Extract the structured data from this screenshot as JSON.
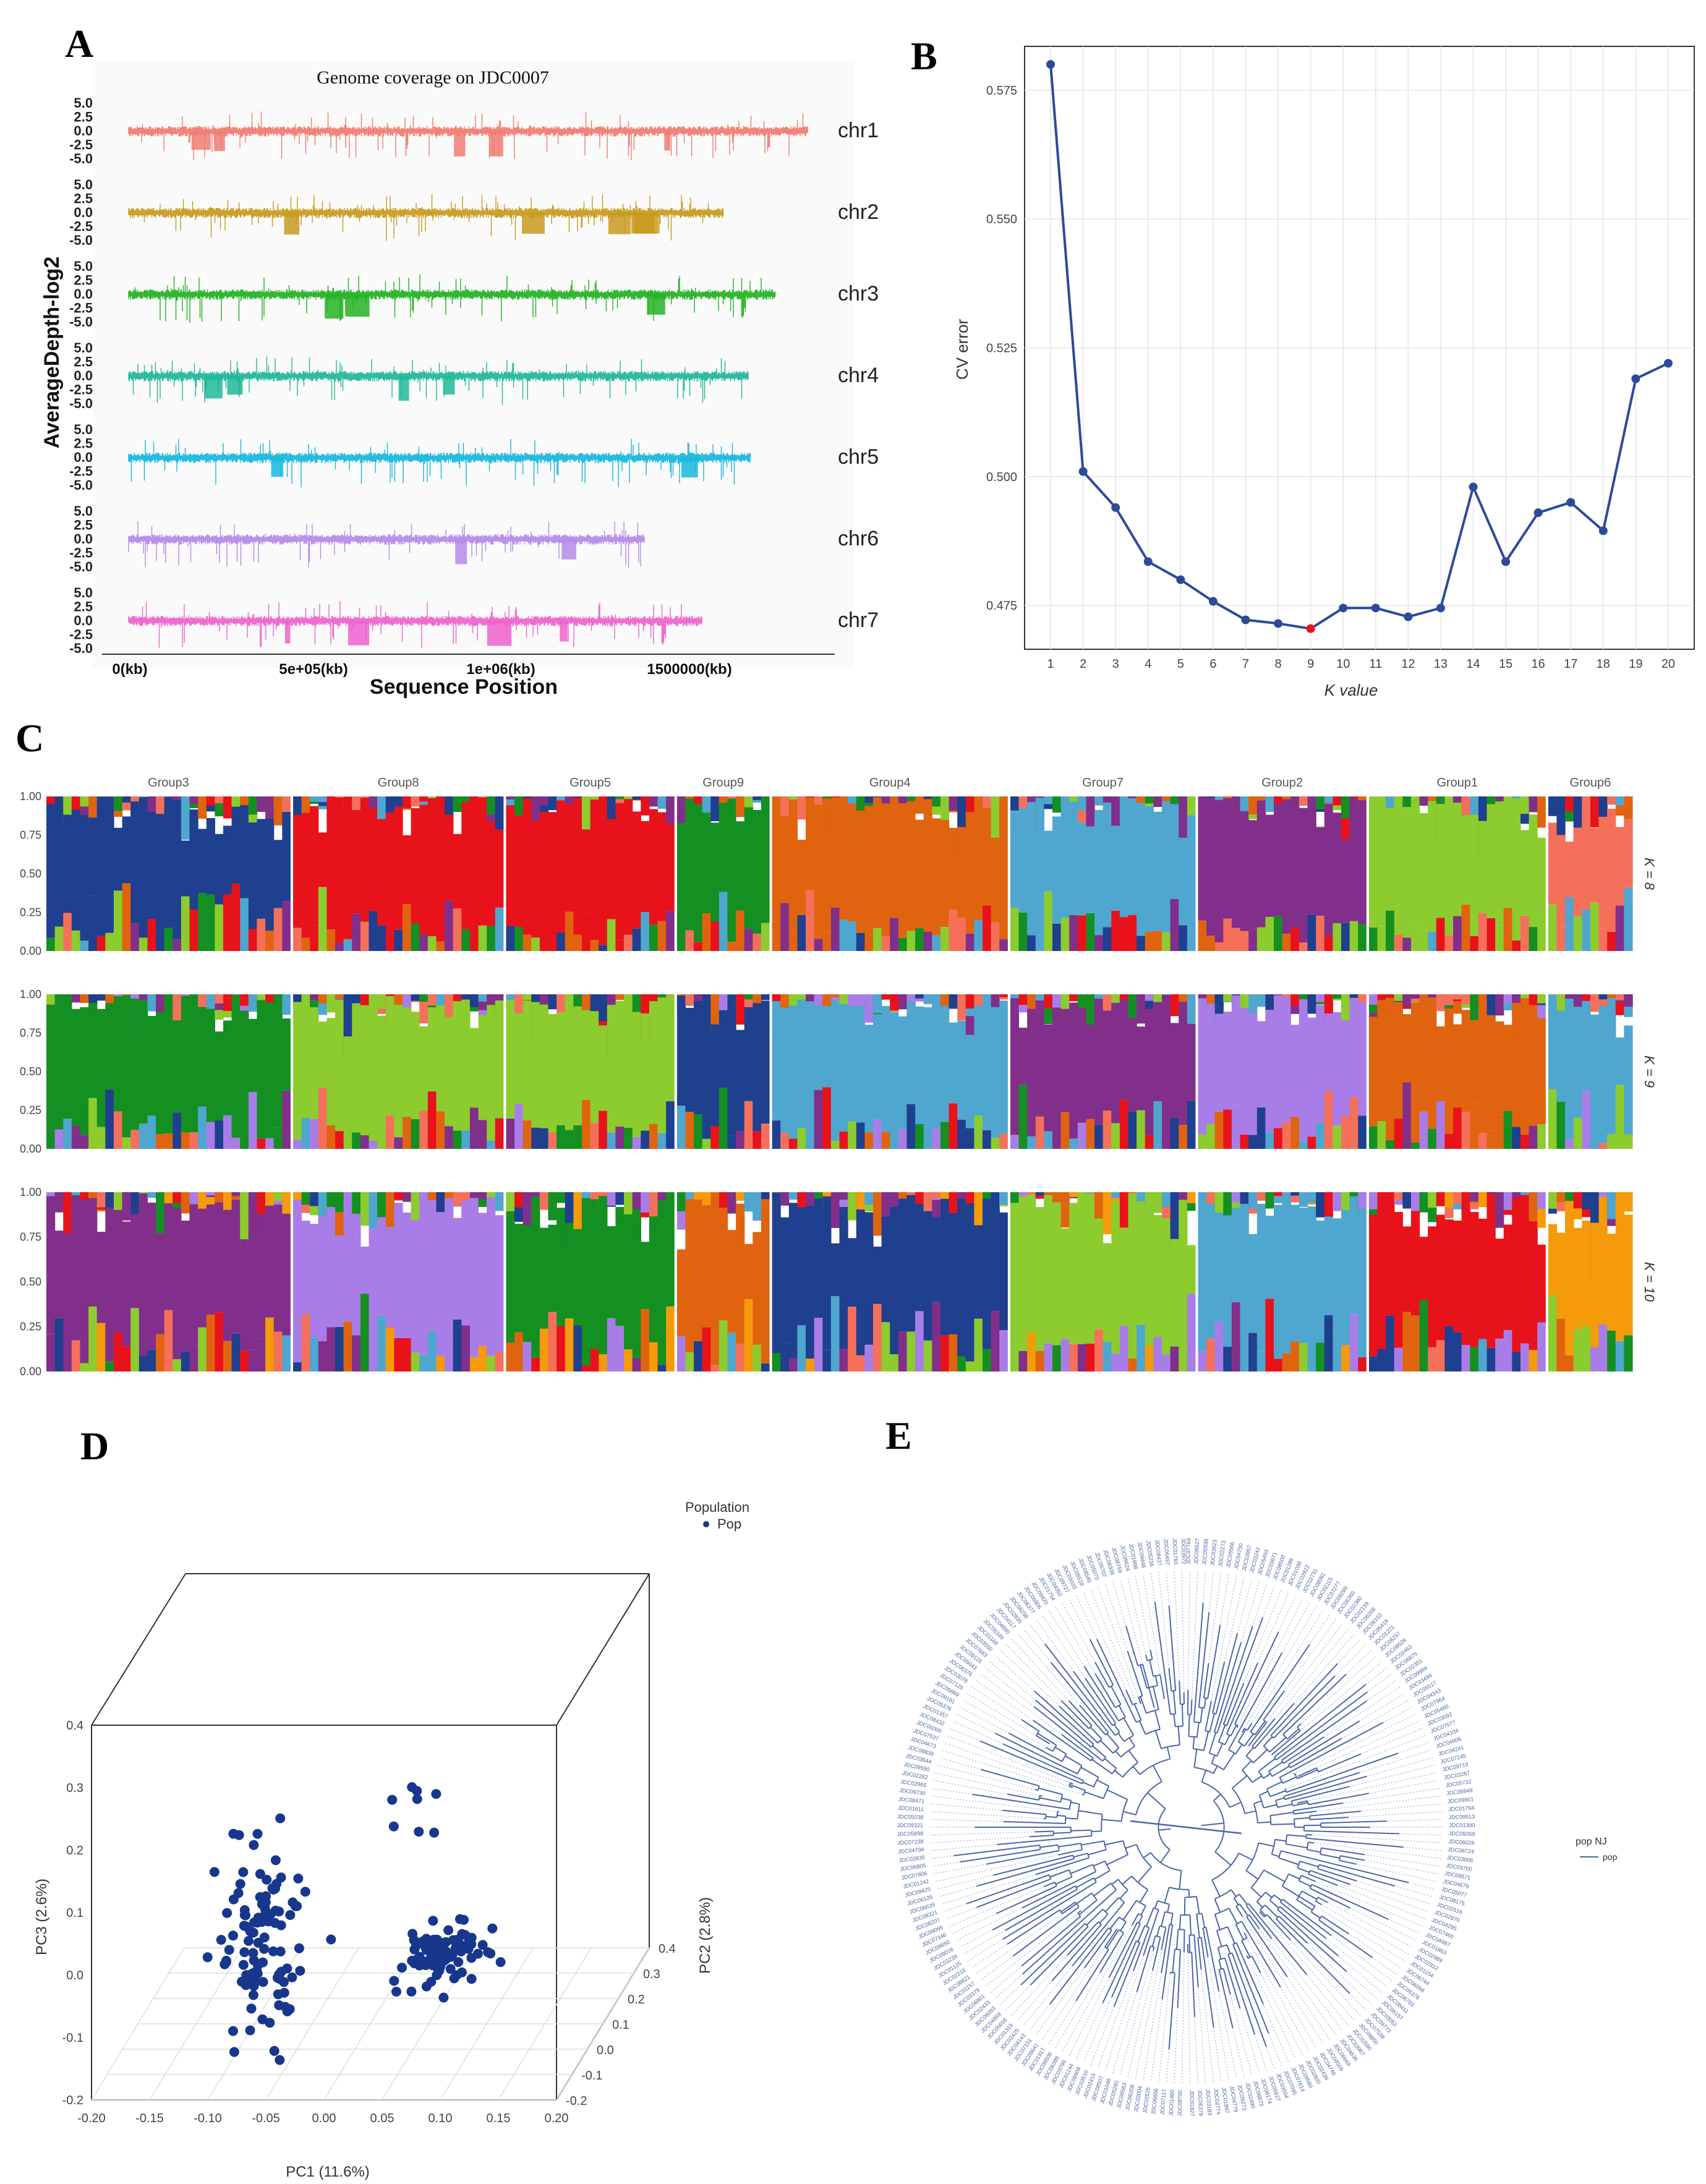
{
  "panels": {
    "A": "A",
    "B": "B",
    "C": "C",
    "D": "D",
    "E": "E"
  },
  "colors": {
    "chr1": "#f07c72",
    "chr2": "#c89a1e",
    "chr3": "#22b322",
    "chr4": "#20b89a",
    "chr5": "#18b7dc",
    "chr6": "#b58ae8",
    "chr7": "#ef62cf",
    "blue": "#1f3f8f",
    "red": "#e8121b",
    "dkgreen": "#148f22",
    "lgreen": "#8ccc2e",
    "orange": "#e0640f",
    "ltblue": "#4fa6cf",
    "purple": "#812f8a",
    "salmon": "#f5705a",
    "lavender": "#a97de8",
    "amber": "#f59a0a",
    "tree": "#4a67a8"
  },
  "chart_data": [
    {
      "panel": "A",
      "type": "line",
      "title": "Genome coverage on JDC0007",
      "xlabel": "Sequence Position",
      "ylabel": "AverageDepth-log2",
      "x_ticks": [
        "0(kb)",
        "5e+05(kb)",
        "1e+06(kb)",
        "1500000(kb)"
      ],
      "y_ticks": [
        "5.0",
        "2.5",
        "0.0",
        "-2.5",
        "-5.0"
      ],
      "ylim": [
        -6,
        6
      ],
      "series": [
        {
          "name": "chr1",
          "length_kb": 1900000
        },
        {
          "name": "chr2",
          "length_kb": 1665000
        },
        {
          "name": "chr3",
          "length_kb": 1810000
        },
        {
          "name": "chr4",
          "length_kb": 1735000
        },
        {
          "name": "chr5",
          "length_kb": 1740000
        },
        {
          "name": "chr6",
          "length_kb": 1445000
        },
        {
          "name": "chr7",
          "length_kb": 1605000
        }
      ]
    },
    {
      "panel": "B",
      "type": "line",
      "xlabel": "K value",
      "ylabel": "CV error",
      "x": [
        1,
        2,
        3,
        4,
        5,
        6,
        7,
        8,
        9,
        10,
        11,
        12,
        13,
        14,
        15,
        16,
        17,
        18,
        19,
        20
      ],
      "values": [
        0.58,
        0.501,
        0.494,
        0.4835,
        0.48,
        0.4758,
        0.4722,
        0.4715,
        0.4705,
        0.4745,
        0.4745,
        0.4728,
        0.4745,
        0.498,
        0.4835,
        0.493,
        0.495,
        0.4895,
        0.519,
        0.522
      ],
      "highlight_k": 9,
      "y_ticks": [
        "0.475",
        "0.500",
        "0.525",
        "0.550",
        "0.575"
      ],
      "ylim": [
        0.4665,
        0.5835
      ],
      "xlim": [
        0.2,
        20.8
      ]
    },
    {
      "panel": "C",
      "type": "bar",
      "stacked": true,
      "y_ticks": [
        "0.00",
        "0.25",
        "0.50",
        "0.75",
        "1.00"
      ],
      "groups": [
        {
          "name": "Group3",
          "n": 29
        },
        {
          "name": "Group8",
          "n": 25
        },
        {
          "name": "Group5",
          "n": 20
        },
        {
          "name": "Group9",
          "n": 11
        },
        {
          "name": "Group4",
          "n": 28
        },
        {
          "name": "Group7",
          "n": 22
        },
        {
          "name": "Group2",
          "n": 20
        },
        {
          "name": "Group1",
          "n": 21
        },
        {
          "name": "Group6",
          "n": 10
        }
      ],
      "rows": [
        {
          "label": "K = 8",
          "k": 8,
          "dominant": [
            "blue",
            "red",
            "red",
            "dkgreen",
            "orange",
            "ltblue",
            "purple",
            "lgreen",
            "salmon"
          ],
          "palette": [
            "blue",
            "red",
            "dkgreen",
            "lgreen",
            "orange",
            "ltblue",
            "purple",
            "salmon"
          ]
        },
        {
          "label": "K = 9",
          "k": 9,
          "dominant": [
            "dkgreen",
            "lgreen",
            "lgreen",
            "blue",
            "ltblue",
            "purple",
            "lavender",
            "orange",
            "ltblue"
          ],
          "palette": [
            "blue",
            "red",
            "dkgreen",
            "lgreen",
            "orange",
            "ltblue",
            "purple",
            "salmon",
            "lavender"
          ]
        },
        {
          "label": "K = 10",
          "k": 10,
          "dominant": [
            "purple",
            "lavender",
            "dkgreen",
            "orange",
            "blue",
            "lgreen",
            "ltblue",
            "red",
            "amber"
          ],
          "palette": [
            "blue",
            "red",
            "dkgreen",
            "lgreen",
            "orange",
            "ltblue",
            "purple",
            "salmon",
            "lavender",
            "amber"
          ]
        }
      ]
    },
    {
      "panel": "D",
      "type": "scatter",
      "legend_title": "Population",
      "legend_entry": "Pop",
      "xlabel": "PC1 (11.6%)",
      "ylabel": "PC2 (2.8%)",
      "zlabel": "PC3 (2.6%)",
      "x_ticks": [
        "-0.20",
        "-0.15",
        "-0.10",
        "-0.05",
        "0.00",
        "0.05",
        "0.10",
        "0.15",
        "0.20"
      ],
      "y_ticks": [
        "-0.2",
        "-0.1",
        "0.0",
        "0.1",
        "0.2",
        "0.3",
        "0.4"
      ],
      "z_ticks": [
        "-0.2",
        "-0.1",
        "0.0",
        "0.1",
        "0.2",
        "0.3",
        "0.4"
      ],
      "xlim": [
        -0.2,
        0.2
      ],
      "ylim": [
        -0.2,
        0.4
      ],
      "zlim": [
        -0.2,
        0.4
      ],
      "clusters": [
        {
          "name": "cluster-left",
          "n": 105,
          "pc1_mean": -0.07,
          "pc3_mean": 0.09,
          "pc1_sd": 0.018,
          "pc3_sd": 0.07
        },
        {
          "name": "cluster-right",
          "n": 90,
          "pc1_mean": 0.09,
          "pc3_mean": 0.075,
          "pc1_sd": 0.015,
          "pc3_sd": 0.025
        },
        {
          "name": "cluster-upper",
          "n": 8,
          "pc1_mean": 0.06,
          "pc3_mean": 0.3,
          "pc1_sd": 0.012,
          "pc3_sd": 0.04
        }
      ]
    },
    {
      "panel": "E",
      "type": "tree",
      "legend_title": "pop NJ",
      "legend_entry": "pop",
      "n_tips": 206,
      "tip_prefix": "JDC0"
    }
  ]
}
